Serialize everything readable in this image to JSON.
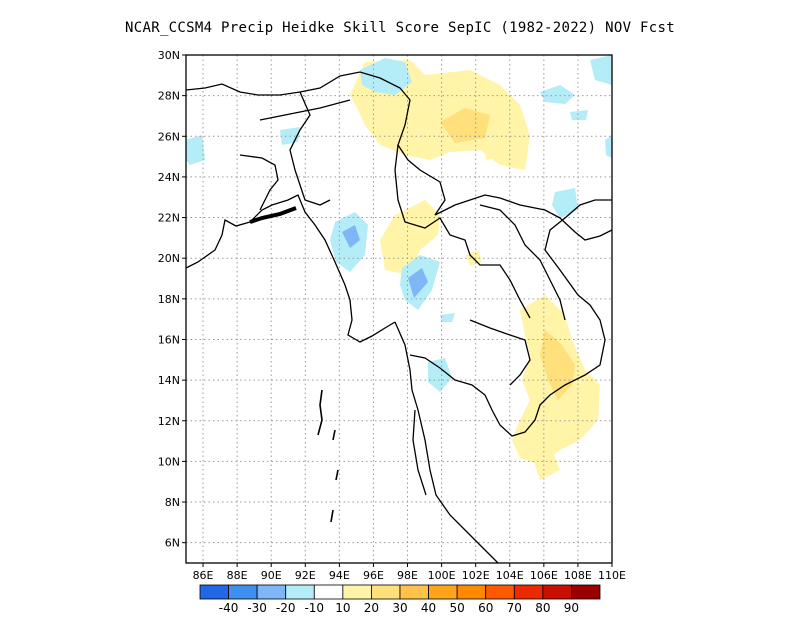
{
  "title": "NCAR_CCSM4 Precip Heidke Skill Score SepIC (1982-2022) NOV Fcst",
  "map": {
    "lon_range": [
      85,
      110
    ],
    "lat_range": [
      5,
      30
    ],
    "lat_ticks": [
      "6N",
      "8N",
      "10N",
      "12N",
      "14N",
      "16N",
      "18N",
      "20N",
      "22N",
      "24N",
      "26N",
      "28N",
      "30N"
    ],
    "lon_ticks": [
      "86E",
      "88E",
      "90E",
      "92E",
      "94E",
      "96E",
      "98E",
      "100E",
      "102E",
      "104E",
      "106E",
      "108E",
      "110E"
    ],
    "grid": "dotted"
  },
  "colorbar": {
    "colors": [
      "#2168e6",
      "#3f8ff0",
      "#7fb6f5",
      "#b4ecf8",
      "#ffffff",
      "#fff4a8",
      "#ffe07a",
      "#ffc24a",
      "#ffa41a",
      "#ff8a00",
      "#ff5a00",
      "#eb2a00",
      "#c80f00",
      "#9a0000"
    ],
    "labels": [
      "-40",
      "-30",
      "-20",
      "-10",
      "10",
      "20",
      "30",
      "40",
      "50",
      "60",
      "70",
      "80",
      "90"
    ]
  }
}
